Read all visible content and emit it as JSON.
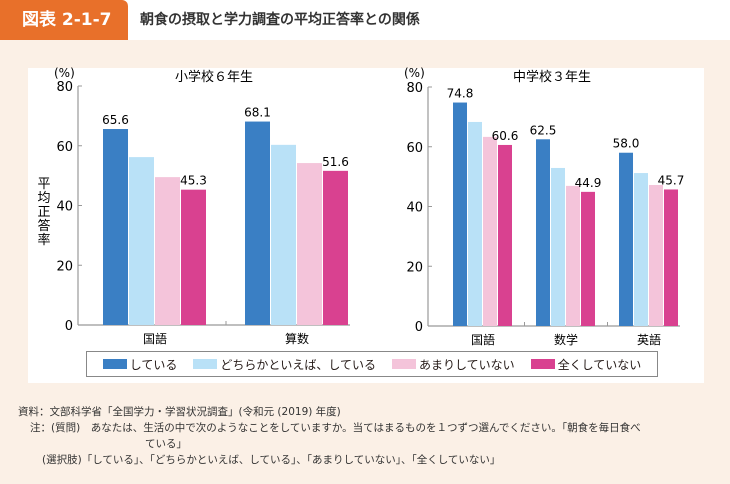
{
  "header": {
    "figure_no": "図表 2-1-7",
    "title": "朝食の摂取と学力調査の平均正答率との関係"
  },
  "legend": [
    {
      "label": "している",
      "color": "#3a7fc4"
    },
    {
      "label": "どちらかといえば、している",
      "color": "#b9e1f7"
    },
    {
      "label": "あまりしていない",
      "color": "#f4c4da"
    },
    {
      "label": "全くしていない",
      "color": "#d94190"
    }
  ],
  "chart_data": [
    {
      "type": "bar",
      "title": "小学校６年生",
      "ylabel": "平均正答率",
      "yunit": "(%)",
      "ylim": [
        0,
        80
      ],
      "yticks": [
        0,
        20,
        40,
        60,
        80
      ],
      "categories": [
        "国語",
        "算数"
      ],
      "series": [
        {
          "name": "している",
          "values": [
            65.6,
            68.1
          ]
        },
        {
          "name": "どちらかといえば、している",
          "values": [
            56.2,
            60.3
          ]
        },
        {
          "name": "あまりしていない",
          "values": [
            49.5,
            54.2
          ]
        },
        {
          "name": "全くしていない",
          "values": [
            45.3,
            51.6
          ]
        }
      ],
      "data_labels": {
        "している": [
          "65.6",
          "68.1"
        ],
        "全くしていない": [
          "45.3",
          "51.6"
        ]
      }
    },
    {
      "type": "bar",
      "title": "中学校３年生",
      "yunit": "(%)",
      "ylim": [
        0,
        80
      ],
      "yticks": [
        0,
        20,
        40,
        60,
        80
      ],
      "categories": [
        "国語",
        "数学",
        "英語"
      ],
      "series": [
        {
          "name": "している",
          "values": [
            74.8,
            62.5,
            58.0
          ]
        },
        {
          "name": "どちらかといえば、している",
          "values": [
            68.3,
            52.9,
            51.2
          ]
        },
        {
          "name": "あまりしていない",
          "values": [
            63.3,
            46.9,
            47.2
          ]
        },
        {
          "name": "全くしていない",
          "values": [
            60.6,
            44.9,
            45.7
          ]
        }
      ],
      "data_labels": {
        "している": [
          "74.8",
          "62.5",
          "58.0"
        ],
        "全くしていない": [
          "60.6",
          "44.9",
          "45.7"
        ]
      }
    }
  ],
  "notes": {
    "source": "資料：文部科学省「全国学力・学習状況調査」(令和元 (2019) 年度)",
    "note1": "注：(質問)　あなたは、生活の中で次のようなことをしていますか。当てはまるものを１つずつ選んでください。「朝食を毎日食べ",
    "note1b": "ている」",
    "note2": "(選択肢)「している」、「どちらかといえば、している」、「あまりしていない」、「全くしていない」"
  }
}
